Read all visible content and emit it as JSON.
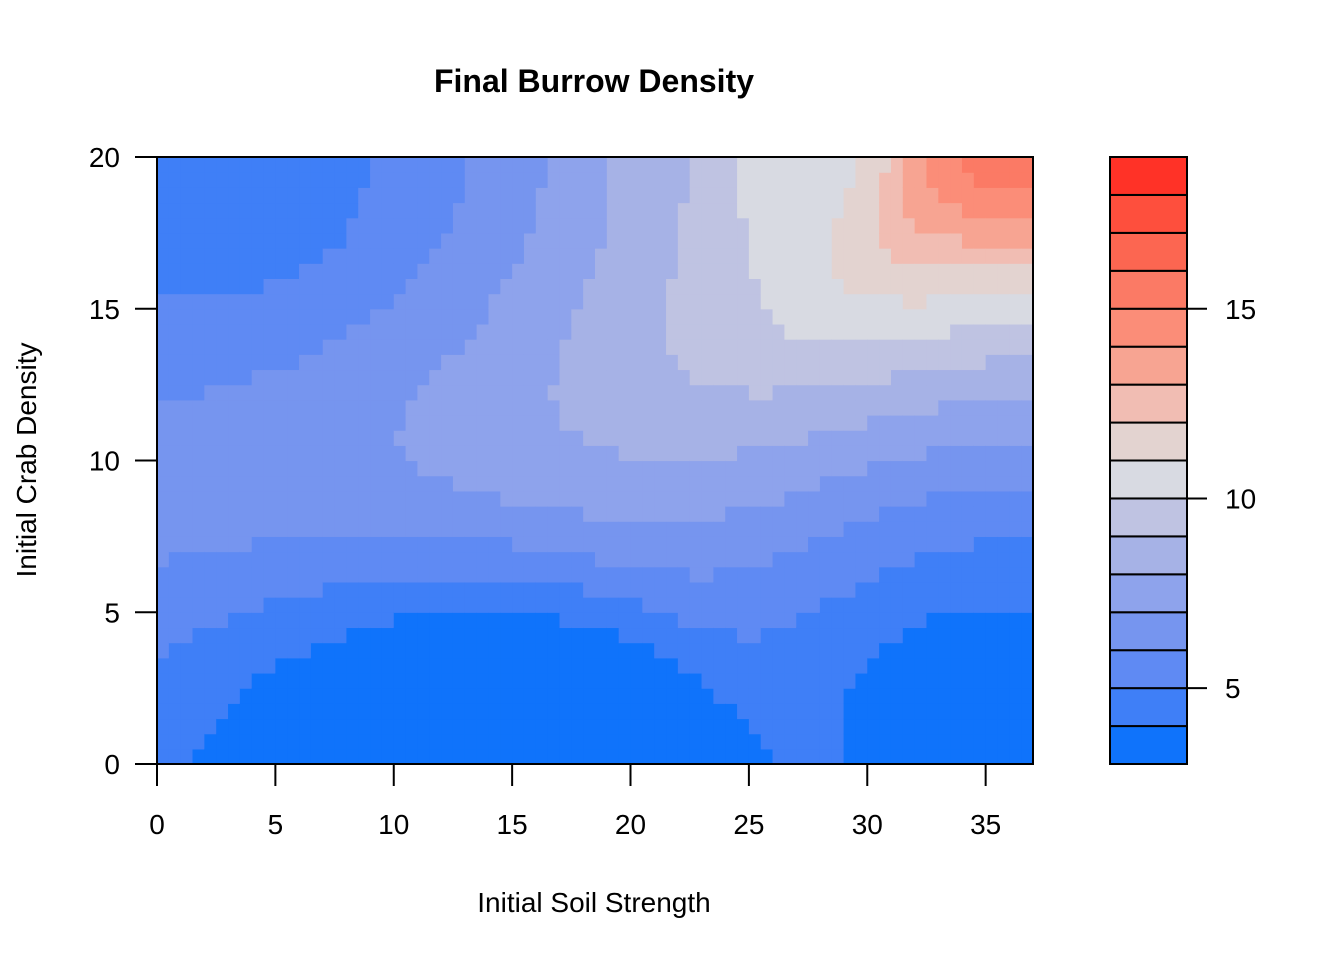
{
  "chart_data": {
    "type": "heatmap",
    "title": "Final Burrow Density",
    "xlabel": "Initial Soil Strength",
    "ylabel": "Initial Crab Density",
    "xlim": [
      0,
      37
    ],
    "ylim": [
      0,
      20
    ],
    "x_ticks": [
      0,
      5,
      10,
      15,
      20,
      25,
      30,
      35
    ],
    "y_ticks": [
      0,
      5,
      10,
      15,
      20
    ],
    "colorbar": {
      "range": [
        3,
        19
      ],
      "ticks": [
        5,
        10,
        15
      ],
      "levels": [
        3,
        4,
        5,
        6,
        7,
        8,
        9,
        10,
        11,
        12,
        13,
        14,
        15,
        16,
        17,
        18,
        19
      ],
      "colors": [
        "#0f73fb",
        "#3f7ff7",
        "#5f8af3",
        "#7695ef",
        "#8ea3ec",
        "#a6b2e6",
        "#bfc3e2",
        "#d8dae2",
        "#e3d3d0",
        "#f1bdb3",
        "#f7a492",
        "#fb8d78",
        "#fb7a65",
        "#fc6651",
        "#fe4f3d",
        "#ff3227"
      ]
    },
    "contour_values": [
      {
        "x": 5,
        "y": 20,
        "z": 4
      },
      {
        "x": 9.5,
        "y": 20,
        "z": 5
      },
      {
        "x": 13,
        "y": 20,
        "z": 6
      },
      {
        "x": 16.5,
        "y": 20,
        "z": 7
      },
      {
        "x": 20,
        "y": 20,
        "z": 8
      },
      {
        "x": 22,
        "y": 20,
        "z": 9
      },
      {
        "x": 25,
        "y": 20,
        "z": 10
      },
      {
        "x": 26.5,
        "y": 20,
        "z": 11
      },
      {
        "x": 15.5,
        "y": 0,
        "z": 3
      },
      {
        "x": 37,
        "y": 3.1,
        "z": 3
      },
      {
        "x": 37,
        "y": 5.6,
        "z": 4
      },
      {
        "x": 37,
        "y": 7.6,
        "z": 5
      },
      {
        "x": 37,
        "y": 9.3,
        "z": 6
      },
      {
        "x": 37,
        "y": 10.8,
        "z": 7
      },
      {
        "x": 37,
        "y": 12.2,
        "z": 8
      },
      {
        "x": 37,
        "y": 13.4,
        "z": 9
      },
      {
        "x": 37,
        "y": 14.5,
        "z": 10
      },
      {
        "x": 37,
        "y": 15.5,
        "z": 11
      },
      {
        "x": 37,
        "y": 16.4,
        "z": 12
      },
      {
        "x": 37,
        "y": 17.3,
        "z": 13
      },
      {
        "x": 37,
        "y": 18.1,
        "z": 14
      },
      {
        "x": 37,
        "y": 18.8,
        "z": 15
      },
      {
        "x": 37,
        "y": 19.5,
        "z": 16
      }
    ]
  }
}
